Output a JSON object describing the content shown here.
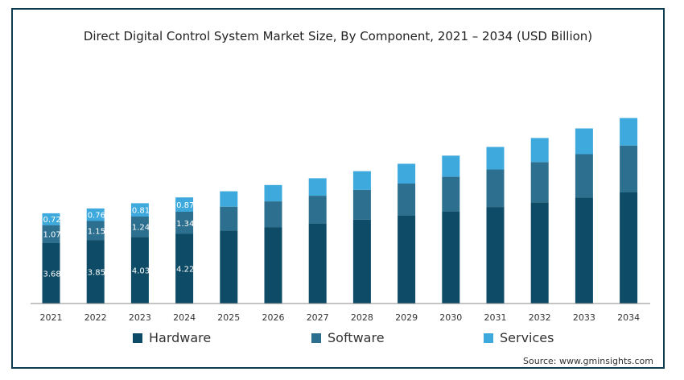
{
  "chart_data": {
    "type": "bar",
    "stacked": true,
    "title": "Direct Digital Control System Market Size, By Component, 2021 – 2034 (USD Billion)",
    "xlabel": "",
    "ylabel": "",
    "ylim": [
      0,
      14
    ],
    "grid": false,
    "legend_position": "bottom",
    "categories": [
      "2021",
      "2022",
      "2023",
      "2024",
      "2025",
      "2026",
      "2027",
      "2028",
      "2029",
      "2030",
      "2031",
      "2032",
      "2033",
      "2034"
    ],
    "series": [
      {
        "name": "Hardware",
        "color": "#0d4b66",
        "values": [
          3.68,
          3.85,
          4.03,
          4.22,
          4.42,
          4.63,
          4.85,
          5.08,
          5.32,
          5.58,
          5.85,
          6.13,
          6.42,
          6.73
        ],
        "labels": [
          "3.68",
          "3.85",
          "4.03",
          "4.22",
          null,
          null,
          null,
          null,
          null,
          null,
          null,
          null,
          null,
          null
        ]
      },
      {
        "name": "Software",
        "color": "#2d6f8f",
        "values": [
          1.07,
          1.15,
          1.24,
          1.34,
          1.45,
          1.56,
          1.68,
          1.81,
          1.95,
          2.1,
          2.27,
          2.44,
          2.63,
          2.84
        ],
        "labels": [
          "1.07",
          "1.15",
          "1.24",
          "1.34",
          null,
          null,
          null,
          null,
          null,
          null,
          null,
          null,
          null,
          null
        ]
      },
      {
        "name": "Services",
        "color": "#3da9dc",
        "values": [
          0.72,
          0.76,
          0.81,
          0.87,
          0.93,
          0.99,
          1.06,
          1.13,
          1.2,
          1.28,
          1.37,
          1.46,
          1.56,
          1.67
        ],
        "labels": [
          "0.72",
          "0.76",
          "0.81",
          "0.87",
          null,
          null,
          null,
          null,
          null,
          null,
          null,
          null,
          null,
          null
        ]
      }
    ],
    "source": "Source: www.gminsights.com"
  }
}
